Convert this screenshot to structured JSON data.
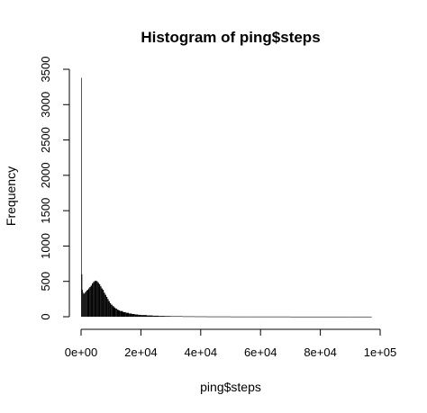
{
  "chart_data": {
    "type": "bar",
    "title": "Histogram of ping$steps",
    "xlabel": "ping$steps",
    "ylabel": "Frequency",
    "xlim": [
      0,
      100000
    ],
    "ylim": [
      0,
      3500
    ],
    "grid": false,
    "x_ticks": [
      0,
      20000,
      40000,
      60000,
      80000,
      100000
    ],
    "x_tick_labels": [
      "0e+00",
      "2e+04",
      "4e+04",
      "6e+04",
      "8e+04",
      "1e+05"
    ],
    "y_ticks": [
      0,
      500,
      1000,
      1500,
      2000,
      2500,
      3000,
      3500
    ],
    "y_tick_labels": [
      "0",
      "500",
      "1000",
      "1500",
      "2000",
      "2500",
      "3000",
      "3500"
    ],
    "bin_width": 200,
    "series": [
      {
        "x": [
          0,
          200,
          400,
          600,
          800,
          1000,
          1200,
          1400,
          1600,
          1800,
          2000,
          2400,
          2800,
          3200,
          3600,
          4000,
          4400,
          4800,
          5200,
          5600,
          6000,
          6400,
          6800,
          7200,
          7600,
          8000,
          8400,
          8800,
          9200,
          9600,
          10000,
          10500,
          11000,
          11500,
          12000,
          12500,
          13000,
          14000,
          15000,
          16000,
          17000,
          18000,
          19000,
          20000,
          22000,
          24000,
          26000,
          28000,
          30000,
          34000,
          38000,
          42000,
          46000,
          50000,
          55000,
          60000,
          70000,
          80000,
          90000,
          97000
        ],
        "values": [
          3380,
          600,
          380,
          340,
          320,
          330,
          340,
          350,
          360,
          370,
          380,
          400,
          420,
          440,
          470,
          490,
          505,
          510,
          500,
          480,
          460,
          430,
          400,
          380,
          340,
          310,
          280,
          250,
          220,
          190,
          170,
          150,
          130,
          115,
          100,
          90,
          80,
          65,
          55,
          45,
          38,
          32,
          27,
          23,
          18,
          14,
          11,
          9,
          7,
          5,
          4,
          3,
          3,
          2,
          2,
          2,
          1,
          1,
          1,
          1
        ]
      }
    ]
  }
}
